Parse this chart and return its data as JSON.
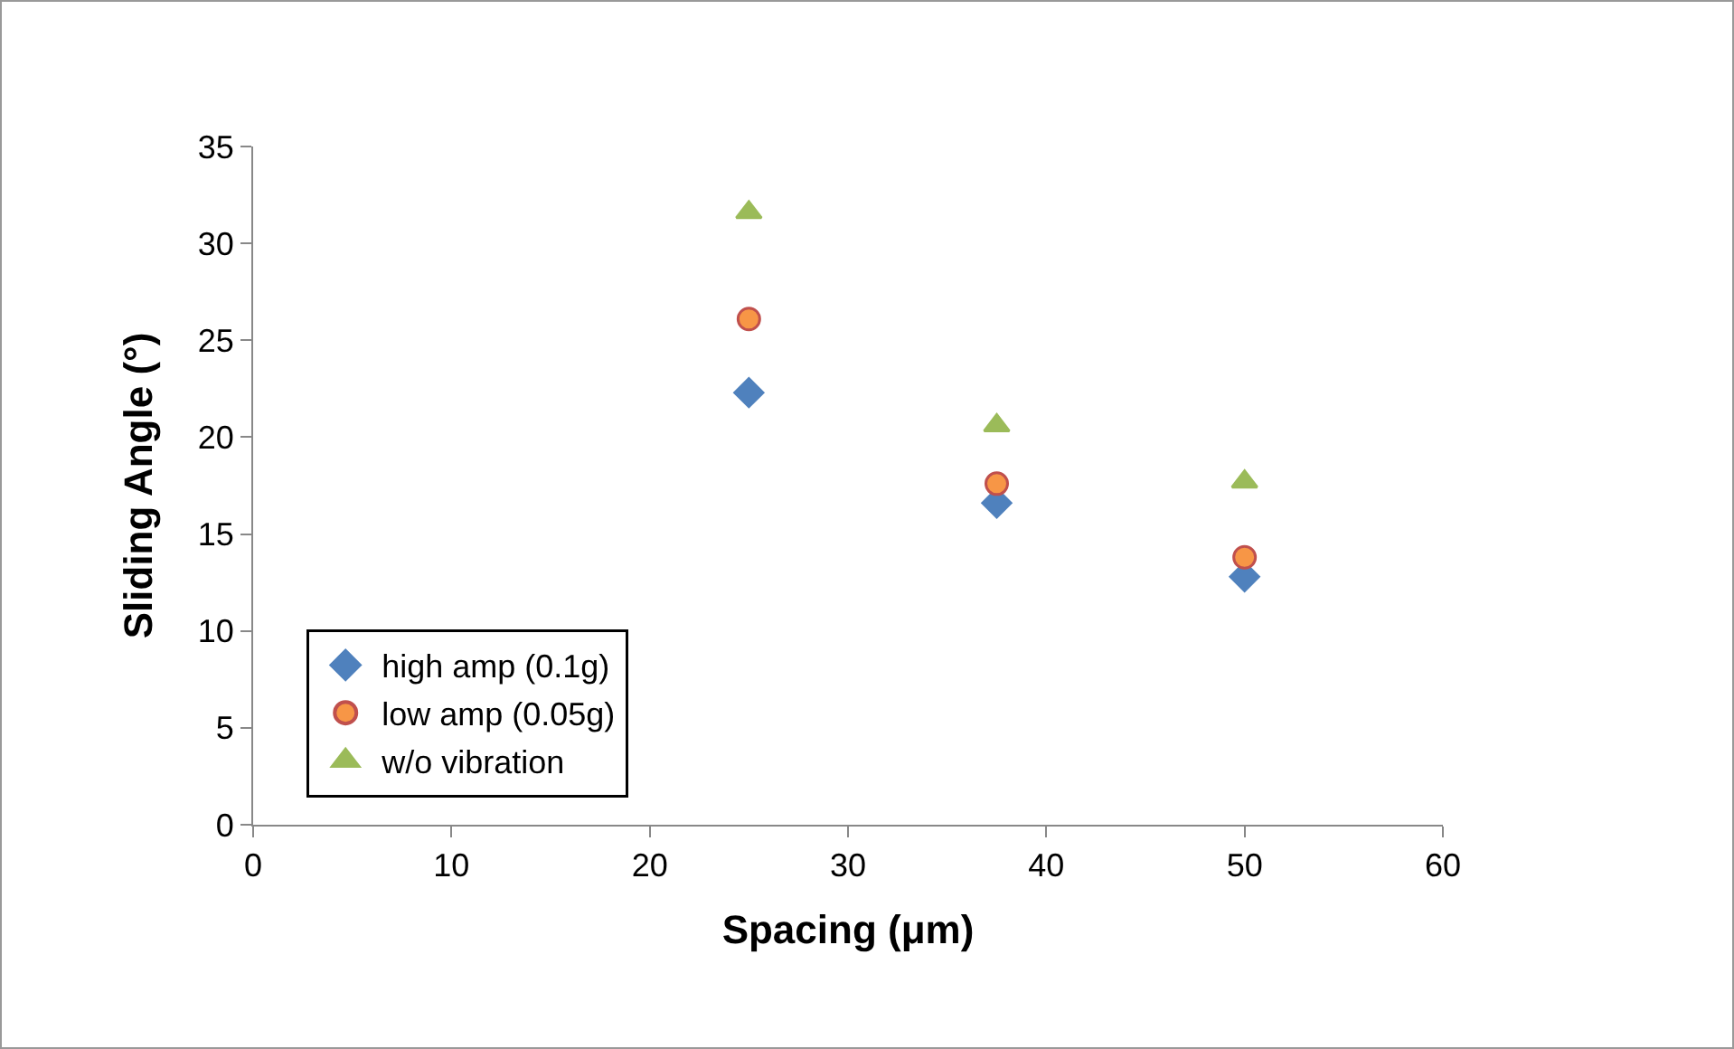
{
  "chart_data": {
    "type": "scatter",
    "xlabel": "Spacing (μm)",
    "ylabel": "Sliding Angle (°)",
    "x": [
      25,
      37.5,
      50
    ],
    "series": [
      {
        "name": "high amp (0.1g)",
        "color": "#4f81bd",
        "marker": "diamond",
        "values": [
          22.3,
          16.6,
          12.8
        ]
      },
      {
        "name": "low amp (0.05g)",
        "color": "#f79646",
        "marker": "circle",
        "values": [
          26.1,
          17.6,
          13.8
        ]
      },
      {
        "name": "w/o vibration",
        "color": "#9bbb59",
        "marker": "triangle",
        "values": [
          31.6,
          20.6,
          17.7
        ]
      }
    ],
    "xlim": [
      0,
      60
    ],
    "xticks": [
      0,
      10,
      20,
      30,
      40,
      50,
      60
    ],
    "ylim": [
      0,
      35
    ],
    "yticks": [
      0,
      5,
      10,
      15,
      20,
      25,
      30,
      35
    ],
    "grid": false,
    "legend": "bottom left"
  }
}
